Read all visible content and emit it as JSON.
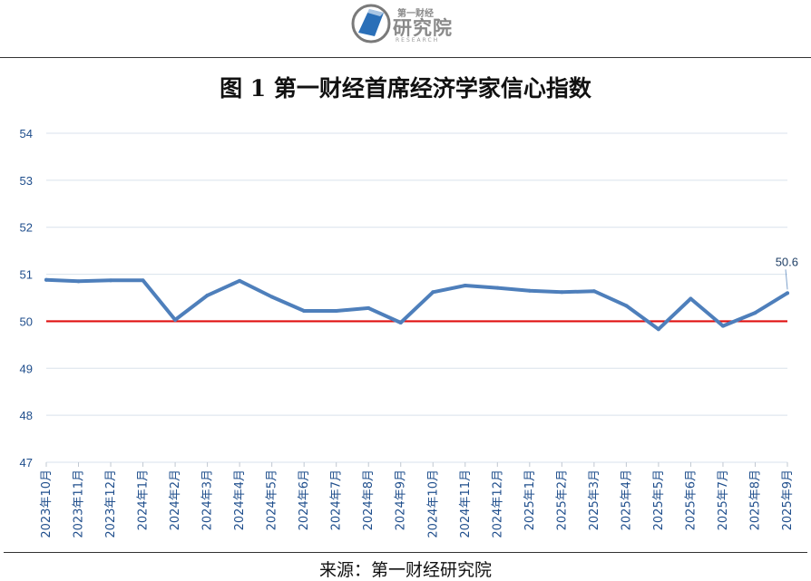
{
  "logo": {
    "top_text": "第一财经",
    "main_text": "研究院",
    "sub_text": "RESEARCH"
  },
  "title": "图 1  第一财经首席经济学家信心指数",
  "source": "来源：第一财经研究院",
  "colors": {
    "series": "#4e7fbb",
    "reference": "#e01010",
    "grid": "#d9e2ec",
    "axis_text": "#1f4e8c"
  },
  "chart_data": {
    "type": "line",
    "categories": [
      "2023年10月",
      "2023年11月",
      "2023年12月",
      "2024年1月",
      "2024年2月",
      "2024年3月",
      "2024年4月",
      "2024年5月",
      "2024年6月",
      "2024年7月",
      "2024年8月",
      "2024年9月",
      "2024年10月",
      "2024年11月",
      "2024年12月",
      "2025年1月",
      "2025年2月",
      "2025年3月",
      "2025年4月",
      "2025年5月",
      "2025年6月",
      "2025年7月",
      "2025年8月",
      "2025年9月"
    ],
    "series": [
      {
        "values": [
          50.88,
          50.85,
          50.87,
          50.87,
          50.03,
          50.55,
          50.86,
          50.52,
          50.22,
          50.22,
          50.28,
          49.97,
          50.62,
          50.76,
          50.71,
          50.65,
          50.62,
          50.64,
          50.33,
          49.83,
          50.48,
          49.9,
          50.18,
          50.6
        ]
      }
    ],
    "reference_line": 50,
    "ylim": [
      47,
      54
    ],
    "yticks": [
      47,
      48,
      49,
      50,
      51,
      52,
      53,
      54
    ],
    "annotations": [
      {
        "category": "2025年9月",
        "label": "50.6"
      }
    ],
    "grid": true,
    "legend": "none"
  }
}
